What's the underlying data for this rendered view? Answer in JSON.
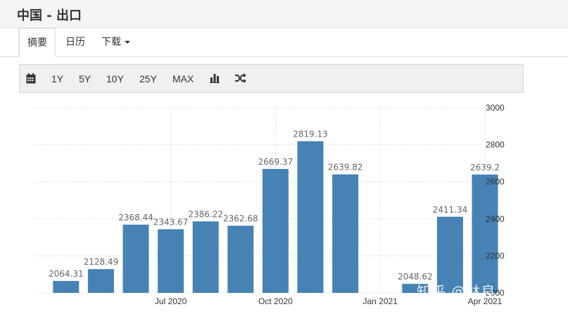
{
  "page": {
    "title": "中国 - 出口"
  },
  "tabs": [
    {
      "label": "摘要",
      "active": true
    },
    {
      "label": "日历",
      "active": false
    },
    {
      "label": "下载",
      "active": false
    }
  ],
  "toolbar": {
    "ranges": [
      "1Y",
      "5Y",
      "10Y",
      "25Y",
      "MAX"
    ],
    "icons": [
      "calendar-icon",
      "bar-chart-icon",
      "shuffle-icon"
    ]
  },
  "watermark": "知乎 @林良",
  "colors": {
    "bar": "#4682b4",
    "grid": "#cccccc"
  },
  "chart_data": {
    "type": "bar",
    "categories": [
      "2020-04",
      "2020-05",
      "2020-06",
      "2020-07",
      "2020-08",
      "2020-09",
      "2020-10",
      "2020-11",
      "2020-12",
      "2021-01",
      "2021-02",
      "2021-03",
      "2021-04"
    ],
    "values": [
      2064.31,
      2128.49,
      2368.44,
      2343.67,
      2386.22,
      2362.68,
      2669.37,
      2819.13,
      2639.82,
      null,
      2048.62,
      2411.34,
      2639.2
    ],
    "data_labels": [
      "2064.31",
      "2128.49",
      "2368.44",
      "2343.67",
      "2386.22",
      "2362.68",
      "2669.37",
      "2819.13",
      "2639.82",
      "",
      "2048.62",
      "2411.34",
      "2639.2"
    ],
    "x_ticks": [
      {
        "label": "Jul 2020",
        "category": "2020-07"
      },
      {
        "label": "Oct 2020",
        "category": "2020-10"
      },
      {
        "label": "Jan 2021",
        "category": "2021-01"
      },
      {
        "label": "Apr 2021",
        "category": "2021-04"
      }
    ],
    "y_ticks": [
      "2000",
      "2200",
      "2400",
      "2600",
      "2800",
      "3000"
    ],
    "ylim": [
      2000,
      3000
    ],
    "y_axis_side": "right",
    "grid": true,
    "title": "",
    "xlabel": "",
    "ylabel": ""
  }
}
